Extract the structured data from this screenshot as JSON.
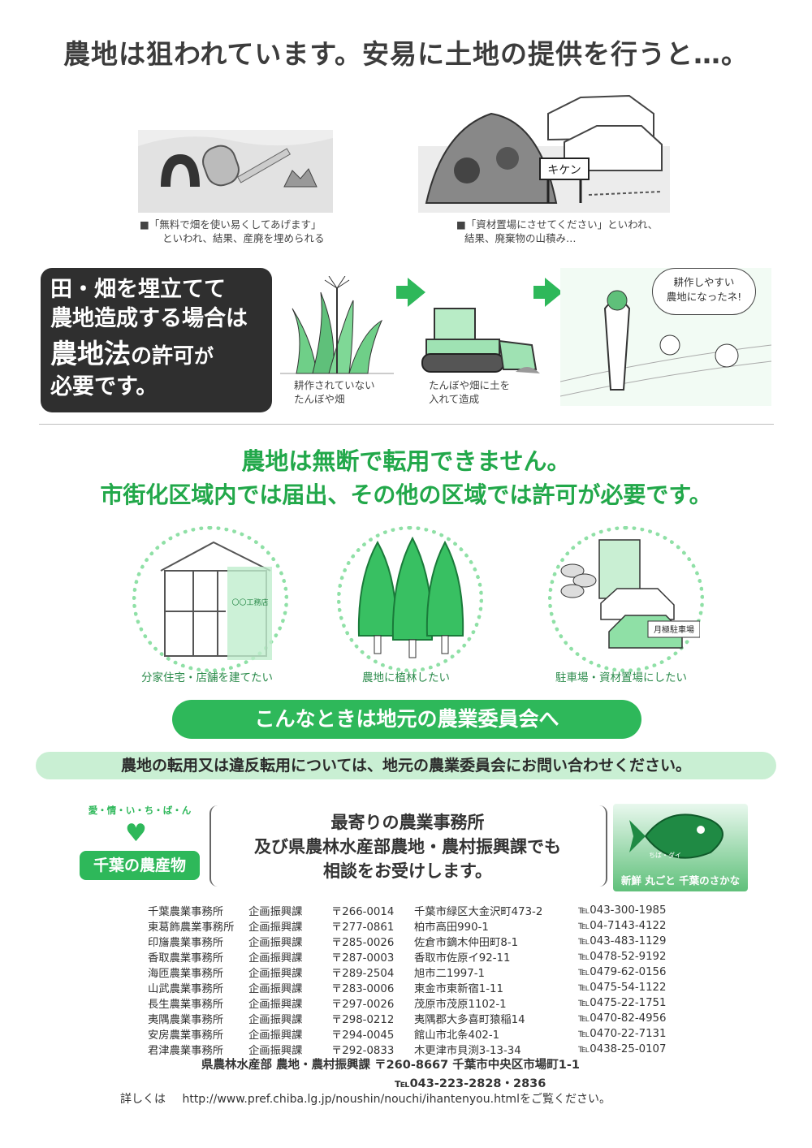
{
  "title": "農地は狙われています。安易に土地の提供を行うと…。",
  "illustrations": {
    "left_caption_1": "■「無料で畑を使い易くしてあげます」",
    "left_caption_2": "といわれ、結果、産廃を埋められる",
    "right_caption_1": "■「資材置場にさせてください」といわれ、",
    "right_caption_2": "結果、廃棄物の山積み…",
    "danger_sign": "キケン"
  },
  "landfill_box": {
    "line1": "田・畑を埋立てて",
    "line2": "農地造成する場合は",
    "line3a": "農地法",
    "line3b": "の許可",
    "line3c": "が",
    "line4": "必要です。"
  },
  "steps": {
    "step1_1": "耕作されていない",
    "step1_2": "たんぼや畑",
    "step2_1": "たんぼや畑に土を",
    "step2_2": "入れて造成",
    "bubble_1": "耕作しやすい",
    "bubble_2": "農地になったネ!"
  },
  "conversion": {
    "heading1": "農地は無断で転用できません。",
    "heading2": "市街化区域内では届出、その他の区域では許可が必要です。",
    "items": [
      {
        "caption": "分家住宅・店舗を建てたい",
        "sign": "〇〇工務店"
      },
      {
        "caption": "農地に植林したい"
      },
      {
        "caption": "駐車場・資材置場にしたい",
        "sign": "月極駐車場"
      }
    ]
  },
  "contact_pill": "こんなときは地元の農業委員会へ",
  "contact_note": "農地の転用又は違反転用については、地元の農業委員会にお問い合わせください。",
  "logo_left": {
    "arc": "愛・情・い・ち・ば・ん",
    "name": "千葉の農産物"
  },
  "consult": {
    "line1": "最寄りの農業事務所",
    "line2": "及び県農林水産部農地・農村振興課でも",
    "line3": "相談をお受けします。"
  },
  "logo_right": {
    "text": "新鮮 丸ごと 千葉のさかな",
    "fish_label": "ちば・ダイ"
  },
  "offices": [
    {
      "name": "千葉農業事務所",
      "section": "企画振興課",
      "zip": "〒266-0014",
      "address": "千葉市緑区大金沢町473-2",
      "tel": "℡043-300-1985"
    },
    {
      "name": "東葛飾農業事務所",
      "section": "企画振興課",
      "zip": "〒277-0861",
      "address": "柏市高田990-1",
      "tel": "℡04-7143-4122"
    },
    {
      "name": "印旛農業事務所",
      "section": "企画振興課",
      "zip": "〒285-0026",
      "address": "佐倉市鏑木仲田町8-1",
      "tel": "℡043-483-1129"
    },
    {
      "name": "香取農業事務所",
      "section": "企画振興課",
      "zip": "〒287-0003",
      "address": "香取市佐原イ92-11",
      "tel": "℡0478-52-9192"
    },
    {
      "name": "海匝農業事務所",
      "section": "企画振興課",
      "zip": "〒289-2504",
      "address": "旭市二1997-1",
      "tel": "℡0479-62-0156"
    },
    {
      "name": "山武農業事務所",
      "section": "企画振興課",
      "zip": "〒283-0006",
      "address": "東金市東新宿1-11",
      "tel": "℡0475-54-1122"
    },
    {
      "name": "長生農業事務所",
      "section": "企画振興課",
      "zip": "〒297-0026",
      "address": "茂原市茂原1102-1",
      "tel": "℡0475-22-1751"
    },
    {
      "name": "夷隅農業事務所",
      "section": "企画振興課",
      "zip": "〒298-0212",
      "address": "夷隅郡大多喜町猿稲14",
      "tel": "℡0470-82-4956"
    },
    {
      "name": "安房農業事務所",
      "section": "企画振興課",
      "zip": "〒294-0045",
      "address": "館山市北条402-1",
      "tel": "℡0470-22-7131"
    },
    {
      "name": "君津農業事務所",
      "section": "企画振興課",
      "zip": "〒292-0833",
      "address": "木更津市貝渕3-13-34",
      "tel": "℡0438-25-0107"
    }
  ],
  "hq": {
    "line1": "県農林水産部 農地・農村振興課 〒260-8667 千葉市中央区市場町1-1",
    "line2": "℡043-223-2828・2836"
  },
  "footer": {
    "prefix": "詳しくは",
    "url": "http://www.pref.chiba.lg.jp/noushin/nouchi/ihantenyou.htmlをご覧ください。"
  }
}
